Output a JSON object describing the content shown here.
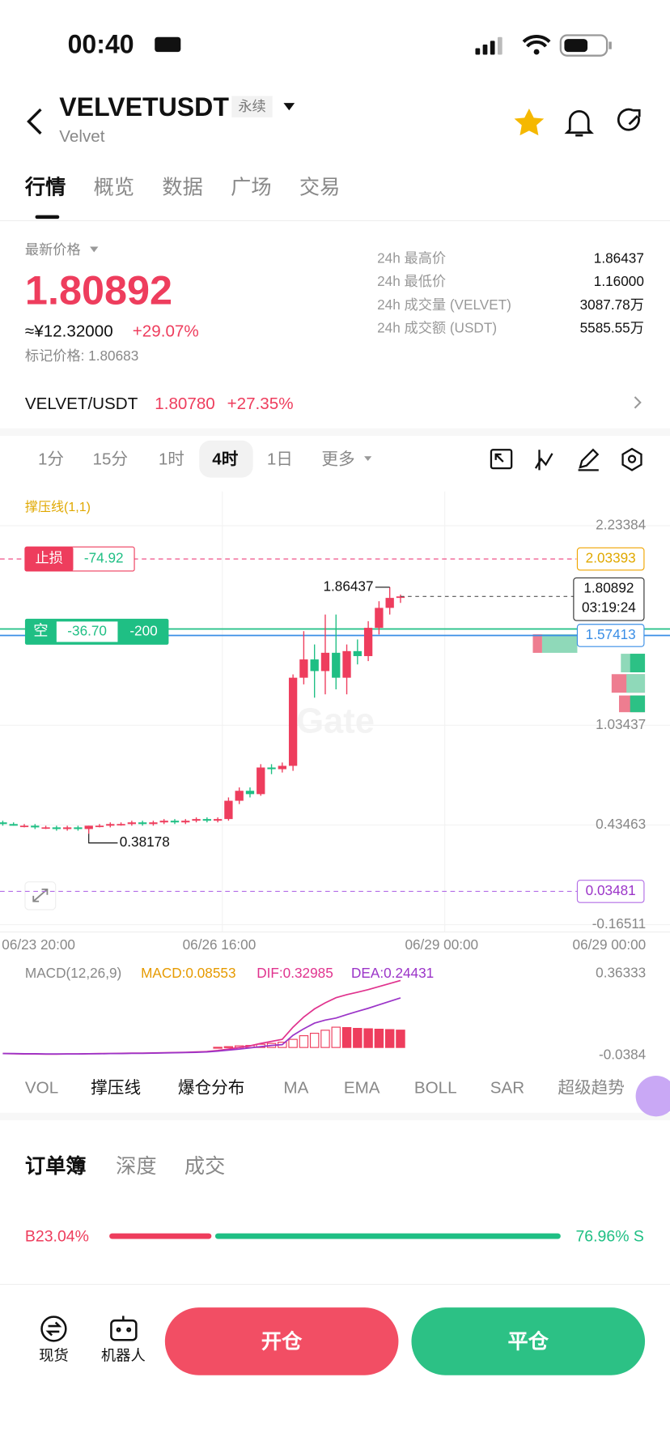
{
  "status": {
    "time": "00:40"
  },
  "header": {
    "symbol": "VELVETUSDT",
    "badge": "永续",
    "name": "Velvet"
  },
  "tabs": [
    "行情",
    "概览",
    "数据",
    "广场",
    "交易"
  ],
  "price": {
    "label": "最新价格",
    "last": "1.80892",
    "cny": "≈¥12.32000",
    "change": "+29.07%",
    "mark": "标记价格: 1.80683"
  },
  "stats": [
    [
      "24h 最高价",
      "1.86437"
    ],
    [
      "24h 最低价",
      "1.16000"
    ],
    [
      "24h 成交量 (VELVET)",
      "3087.78万"
    ],
    [
      "24h 成交额 (USDT)",
      "5585.55万"
    ]
  ],
  "spot": {
    "pair": "VELVET/USDT",
    "price": "1.80780",
    "change": "+27.35%"
  },
  "intervals": [
    "1分",
    "15分",
    "1时",
    "4时",
    "1日",
    "更多"
  ],
  "chart_data": {
    "type": "candlestick",
    "indicator": "撑压线(1,1)",
    "open": [
      0.45,
      0.44,
      0.43,
      0.43,
      0.42,
      0.42,
      0.41,
      0.42,
      0.41,
      0.43,
      0.43,
      0.44,
      0.44,
      0.45,
      0.44,
      0.45,
      0.46,
      0.45,
      0.46,
      0.47,
      0.46,
      0.47,
      0.58,
      0.64,
      0.62,
      0.78,
      0.77,
      0.79,
      1.32,
      1.43,
      1.36,
      1.47,
      1.32,
      1.48,
      1.45,
      1.62,
      1.74,
      1.8
    ],
    "high": [
      0.46,
      0.45,
      0.44,
      0.44,
      0.43,
      0.43,
      0.43,
      0.43,
      0.43,
      0.44,
      0.45,
      0.45,
      0.46,
      0.46,
      0.46,
      0.47,
      0.47,
      0.47,
      0.48,
      0.48,
      0.48,
      0.6,
      0.66,
      0.66,
      0.8,
      0.8,
      0.81,
      1.34,
      1.6,
      1.52,
      1.7,
      1.7,
      1.52,
      1.55,
      1.66,
      1.78,
      1.86437,
      1.82
    ],
    "low": [
      0.43,
      0.43,
      0.42,
      0.41,
      0.41,
      0.4,
      0.4,
      0.4,
      0.38178,
      0.42,
      0.42,
      0.43,
      0.43,
      0.43,
      0.43,
      0.44,
      0.44,
      0.44,
      0.45,
      0.45,
      0.45,
      0.46,
      0.56,
      0.6,
      0.61,
      0.74,
      0.75,
      0.76,
      1.28,
      1.2,
      1.22,
      1.25,
      1.22,
      1.4,
      1.42,
      1.58,
      1.7,
      1.77
    ],
    "close": [
      0.44,
      0.43,
      0.43,
      0.42,
      0.42,
      0.41,
      0.42,
      0.41,
      0.43,
      0.43,
      0.44,
      0.44,
      0.45,
      0.44,
      0.45,
      0.46,
      0.45,
      0.46,
      0.47,
      0.46,
      0.47,
      0.58,
      0.64,
      0.62,
      0.78,
      0.77,
      0.79,
      1.32,
      1.43,
      1.36,
      1.47,
      1.32,
      1.48,
      1.45,
      1.62,
      1.74,
      1.8,
      1.80892
    ],
    "up_color": "#ee3d5d",
    "down_color": "#1fbf84",
    "ylim": [
      -0.209,
      2.44
    ],
    "yticks": [
      2.23384,
      1.03437,
      0.43463,
      -0.16511
    ],
    "xticks": [
      "06/23 20:00",
      "06/26 16:00",
      "06/29 00:00",
      "06/29 00:00"
    ],
    "countdown": "03:19:24",
    "stop_line": {
      "label": "止损",
      "pnl": "-74.92",
      "value": 2.03393
    },
    "position_line": {
      "side": "空",
      "pnl": "-36.70",
      "qty": "-200",
      "value": 1.57413
    },
    "alert_line": {
      "value": 0.03481
    },
    "macd": {
      "label": "MACD(12,26,9)",
      "macd": "MACD:0.08553",
      "dif": "DIF:0.32985",
      "dea": "DEA:0.24431",
      "ylim": [
        -0.0567,
        0.409
      ],
      "yticks": [
        0.36333,
        -0.0384
      ],
      "dif_values": [
        -0.03,
        -0.031,
        -0.032,
        -0.032,
        -0.033,
        -0.033,
        -0.032,
        -0.032,
        -0.031,
        -0.03,
        -0.03,
        -0.029,
        -0.028,
        -0.028,
        -0.027,
        -0.026,
        -0.025,
        -0.024,
        -0.022,
        -0.02,
        -0.015,
        -0.008,
        0.0,
        0.008,
        0.02,
        0.03,
        0.04,
        0.1,
        0.15,
        0.19,
        0.22,
        0.245,
        0.26,
        0.272,
        0.285,
        0.3,
        0.315,
        0.32985
      ],
      "dea_values": [
        -0.03,
        -0.03,
        -0.031,
        -0.031,
        -0.032,
        -0.032,
        -0.032,
        -0.032,
        -0.031,
        -0.031,
        -0.03,
        -0.03,
        -0.029,
        -0.029,
        -0.028,
        -0.027,
        -0.026,
        -0.025,
        -0.024,
        -0.022,
        -0.018,
        -0.013,
        -0.008,
        -0.002,
        0.004,
        0.01,
        0.014,
        0.06,
        0.092,
        0.12,
        0.135,
        0.145,
        0.162,
        0.178,
        0.193,
        0.21,
        0.227,
        0.24431
      ],
      "hist": [
        null,
        null,
        null,
        null,
        null,
        null,
        null,
        null,
        null,
        null,
        null,
        null,
        null,
        null,
        null,
        null,
        null,
        null,
        null,
        null,
        0.001,
        0.004,
        0.008,
        0.01,
        0.016,
        0.02,
        0.026,
        0.04,
        0.058,
        0.07,
        0.085,
        0.1,
        0.098,
        0.094,
        0.092,
        0.09,
        0.088,
        0.08553
      ],
      "dif_color": "#e0338e",
      "dea_color": "#9b34c8",
      "hist_color": "#ee3d5d"
    }
  },
  "indicators": [
    "VOL",
    "撑压线",
    "爆仓分布",
    "MA",
    "EMA",
    "BOLL",
    "SAR",
    "超级趋势"
  ],
  "orderbook": {
    "tabs": [
      "订单簿",
      "深度",
      "成交"
    ],
    "ratio": {
      "values": [
        23.04,
        76.96
      ],
      "value_labels": [
        "B23.04%",
        "76.96% S"
      ]
    }
  },
  "bottom": {
    "items": [
      "现货",
      "机器人"
    ],
    "open": "开仓",
    "close": "平仓"
  }
}
